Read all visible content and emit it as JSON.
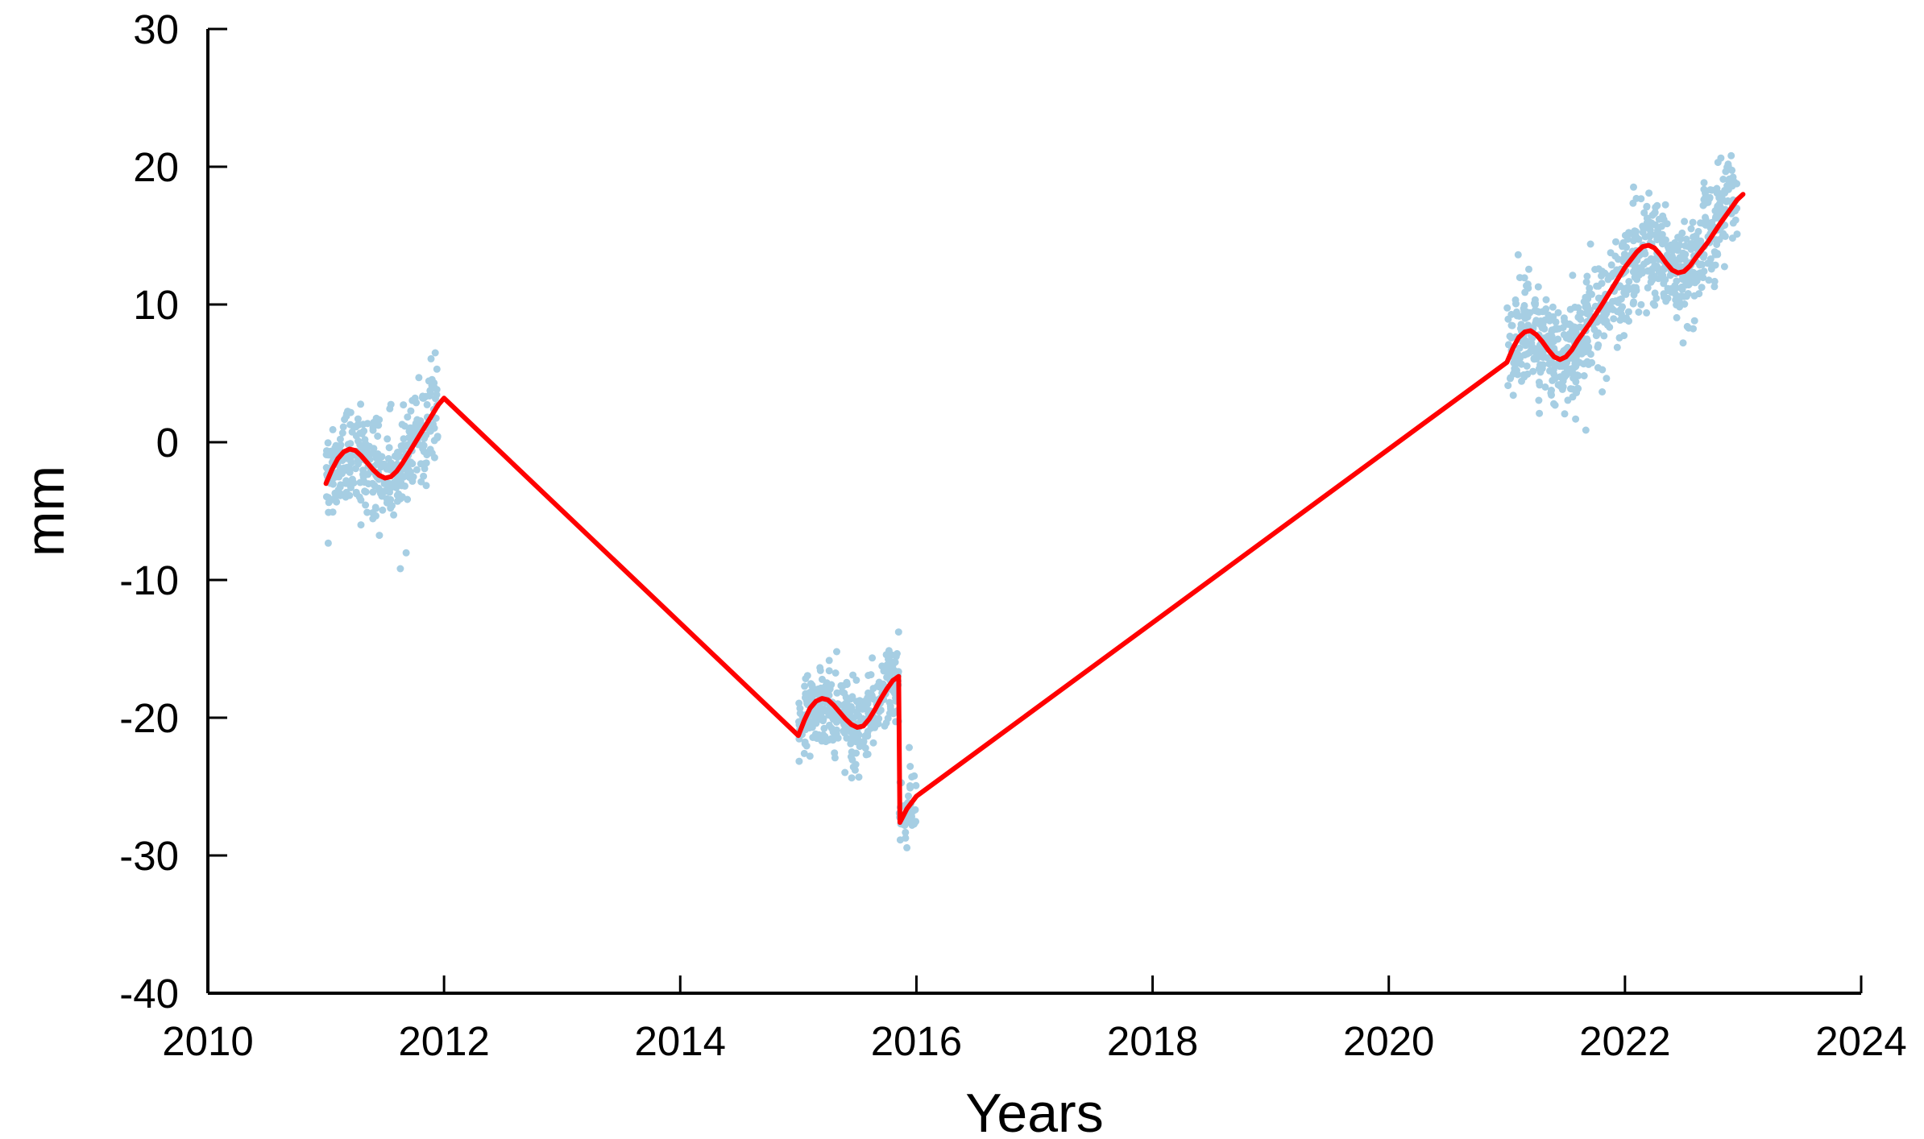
{
  "chart_data": {
    "type": "scatter",
    "title": "",
    "xlabel": "Years",
    "ylabel": "mm",
    "xlim": [
      2010,
      2024
    ],
    "ylim": [
      -40,
      30
    ],
    "x_ticks": [
      2010,
      2012,
      2014,
      2016,
      2018,
      2020,
      2022,
      2024
    ],
    "y_ticks": [
      -40,
      -30,
      -20,
      -10,
      0,
      10,
      20,
      30
    ],
    "grid": false,
    "legend": "none",
    "colors": {
      "points": "#a6cee3",
      "fit": "#ff0000",
      "axis": "#000000"
    },
    "series": [
      {
        "kind": "scatter-cluster",
        "segments": [
          {
            "x_range": [
              2011.0,
              2011.95
            ],
            "trend_points": [
              [
                2011.0,
                -2.5
              ],
              [
                2011.25,
                -0.5
              ],
              [
                2011.55,
                -2.5
              ],
              [
                2011.8,
                0.5
              ],
              [
                2011.95,
                2.5
              ]
            ],
            "y_spread": 3.2,
            "count": 380
          },
          {
            "x_range": [
              2015.0,
              2015.85
            ],
            "trend_points": [
              [
                2015.0,
                -20.5
              ],
              [
                2015.2,
                -18.8
              ],
              [
                2015.5,
                -20.6
              ],
              [
                2015.85,
                -17.0
              ]
            ],
            "y_spread": 2.8,
            "count": 350
          },
          {
            "x_range": [
              2015.85,
              2016.0
            ],
            "trend_points": [
              [
                2015.85,
                -27.5
              ],
              [
                2016.0,
                -26.0
              ]
            ],
            "y_spread": 2.5,
            "count": 40
          },
          {
            "x_range": [
              2021.0,
              2022.95
            ],
            "trend_points": [
              [
                2021.0,
                6.5
              ],
              [
                2021.2,
                8.0
              ],
              [
                2021.5,
                6.0
              ],
              [
                2021.8,
                9.5
              ],
              [
                2022.2,
                14.2
              ],
              [
                2022.5,
                12.2
              ],
              [
                2022.95,
                18.5
              ]
            ],
            "y_spread": 3.4,
            "count": 820
          }
        ]
      },
      {
        "kind": "fit-line",
        "points": [
          [
            2011.0,
            -3.0
          ],
          [
            2011.05,
            -2.0
          ],
          [
            2011.1,
            -1.2
          ],
          [
            2011.15,
            -0.7
          ],
          [
            2011.2,
            -0.5
          ],
          [
            2011.25,
            -0.6
          ],
          [
            2011.3,
            -1.0
          ],
          [
            2011.35,
            -1.5
          ],
          [
            2011.4,
            -2.0
          ],
          [
            2011.45,
            -2.4
          ],
          [
            2011.5,
            -2.6
          ],
          [
            2011.55,
            -2.5
          ],
          [
            2011.6,
            -2.1
          ],
          [
            2011.65,
            -1.5
          ],
          [
            2011.7,
            -0.8
          ],
          [
            2011.75,
            -0.1
          ],
          [
            2011.8,
            0.6
          ],
          [
            2011.85,
            1.3
          ],
          [
            2011.9,
            2.0
          ],
          [
            2011.95,
            2.7
          ],
          [
            2012.0,
            3.2
          ],
          [
            2015.0,
            -21.3
          ],
          [
            2015.05,
            -20.2
          ],
          [
            2015.1,
            -19.3
          ],
          [
            2015.15,
            -18.8
          ],
          [
            2015.2,
            -18.6
          ],
          [
            2015.25,
            -18.7
          ],
          [
            2015.3,
            -19.1
          ],
          [
            2015.35,
            -19.6
          ],
          [
            2015.4,
            -20.1
          ],
          [
            2015.45,
            -20.5
          ],
          [
            2015.5,
            -20.7
          ],
          [
            2015.55,
            -20.6
          ],
          [
            2015.6,
            -20.1
          ],
          [
            2015.65,
            -19.4
          ],
          [
            2015.7,
            -18.6
          ],
          [
            2015.75,
            -17.9
          ],
          [
            2015.8,
            -17.3
          ],
          [
            2015.85,
            -17.0
          ],
          [
            2015.86,
            -27.6
          ],
          [
            2015.92,
            -26.6
          ],
          [
            2016.0,
            -25.7
          ],
          [
            2021.0,
            5.8
          ],
          [
            2021.05,
            6.8
          ],
          [
            2021.1,
            7.6
          ],
          [
            2021.15,
            8.0
          ],
          [
            2021.2,
            8.1
          ],
          [
            2021.25,
            7.8
          ],
          [
            2021.3,
            7.3
          ],
          [
            2021.35,
            6.7
          ],
          [
            2021.4,
            6.2
          ],
          [
            2021.45,
            6.0
          ],
          [
            2021.5,
            6.2
          ],
          [
            2021.55,
            6.7
          ],
          [
            2021.6,
            7.4
          ],
          [
            2021.7,
            8.6
          ],
          [
            2021.8,
            9.9
          ],
          [
            2021.9,
            11.3
          ],
          [
            2022.0,
            12.7
          ],
          [
            2022.1,
            13.8
          ],
          [
            2022.15,
            14.2
          ],
          [
            2022.2,
            14.3
          ],
          [
            2022.25,
            14.1
          ],
          [
            2022.3,
            13.6
          ],
          [
            2022.35,
            13.0
          ],
          [
            2022.4,
            12.5
          ],
          [
            2022.45,
            12.3
          ],
          [
            2022.5,
            12.4
          ],
          [
            2022.55,
            12.8
          ],
          [
            2022.6,
            13.4
          ],
          [
            2022.7,
            14.5
          ],
          [
            2022.8,
            15.8
          ],
          [
            2022.9,
            17.0
          ],
          [
            2022.95,
            17.6
          ],
          [
            2023.0,
            18.0
          ]
        ]
      }
    ]
  }
}
